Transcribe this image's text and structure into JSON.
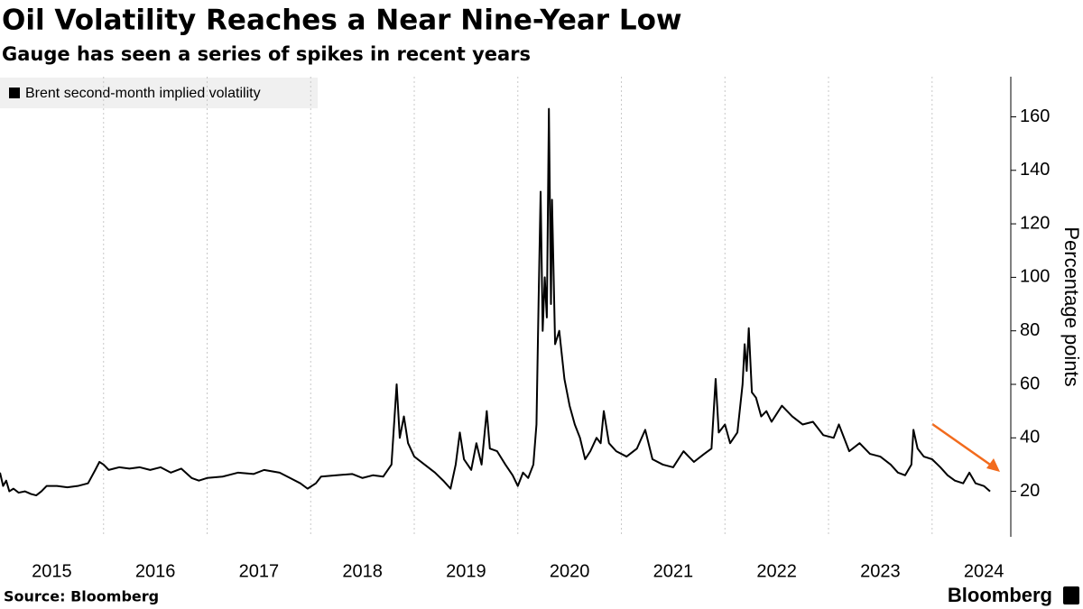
{
  "chart_data": {
    "type": "line",
    "title": "Oil Volatility Reaches a Near Nine-Year Low",
    "subtitle": "Gauge has seen a series of spikes in recent years",
    "y_label": "Percentage points",
    "source": "Source: Bloomberg",
    "brand": "Bloomberg",
    "x": [
      2015.0,
      2015.03,
      2015.06,
      2015.09,
      2015.13,
      2015.18,
      2015.24,
      2015.3,
      2015.35,
      2015.4,
      2015.45,
      2015.55,
      2015.65,
      2015.75,
      2015.85,
      2015.92,
      2015.96,
      2016.0,
      2016.05,
      2016.15,
      2016.25,
      2016.35,
      2016.45,
      2016.55,
      2016.65,
      2016.75,
      2016.85,
      2016.92,
      2017.0,
      2017.15,
      2017.3,
      2017.45,
      2017.55,
      2017.7,
      2017.8,
      2017.9,
      2017.97,
      2018.05,
      2018.1,
      2018.25,
      2018.4,
      2018.5,
      2018.6,
      2018.7,
      2018.78,
      2018.83,
      2018.86,
      2018.9,
      2018.94,
      2019.0,
      2019.1,
      2019.2,
      2019.28,
      2019.35,
      2019.4,
      2019.44,
      2019.48,
      2019.55,
      2019.6,
      2019.65,
      2019.7,
      2019.73,
      2019.8,
      2019.88,
      2019.95,
      2020.0,
      2020.05,
      2020.1,
      2020.15,
      2020.18,
      2020.2,
      2020.22,
      2020.24,
      2020.26,
      2020.28,
      2020.3,
      2020.32,
      2020.33,
      2020.36,
      2020.4,
      2020.45,
      2020.5,
      2020.55,
      2020.6,
      2020.65,
      2020.7,
      2020.76,
      2020.8,
      2020.83,
      2020.88,
      2020.95,
      2021.05,
      2021.15,
      2021.23,
      2021.3,
      2021.4,
      2021.5,
      2021.6,
      2021.7,
      2021.8,
      2021.87,
      2021.91,
      2021.94,
      2022.0,
      2022.05,
      2022.12,
      2022.17,
      2022.19,
      2022.21,
      2022.23,
      2022.26,
      2022.3,
      2022.35,
      2022.4,
      2022.45,
      2022.55,
      2022.65,
      2022.75,
      2022.85,
      2022.95,
      2023.05,
      2023.1,
      2023.2,
      2023.3,
      2023.4,
      2023.5,
      2023.6,
      2023.67,
      2023.74,
      2023.8,
      2023.82,
      2023.86,
      2023.92,
      2024.0,
      2024.08,
      2024.15,
      2024.22,
      2024.3,
      2024.36,
      2024.42,
      2024.5,
      2024.56
    ],
    "series": [
      {
        "name": "Brent second-month implied volatility",
        "color": "#000000",
        "values": [
          27,
          22,
          24,
          20,
          21,
          19.5,
          20,
          19,
          18.5,
          20,
          22,
          22,
          21.5,
          22,
          23,
          28,
          31,
          30,
          28,
          29,
          28.5,
          29,
          28,
          29,
          27,
          28.5,
          25,
          24,
          25,
          25.5,
          27,
          26.5,
          28,
          27,
          25,
          23,
          21,
          23,
          25.5,
          26,
          26.5,
          25,
          26,
          25.5,
          30,
          60,
          40,
          48,
          38,
          33,
          30,
          27,
          24,
          21,
          30,
          42,
          32,
          28,
          38,
          30,
          50,
          36,
          35,
          30,
          26,
          22,
          27,
          25,
          30,
          45,
          90,
          132,
          80,
          100,
          85,
          163,
          90,
          129,
          75,
          80,
          62,
          52,
          45,
          40,
          32,
          35,
          40,
          38,
          50,
          38,
          35,
          33,
          36,
          43,
          32,
          30,
          29,
          35,
          31,
          34,
          36,
          62,
          42,
          45,
          38,
          42,
          60,
          75,
          65,
          81,
          57,
          55,
          48,
          50,
          46,
          52,
          48,
          45,
          46,
          41,
          40,
          45,
          35,
          38,
          34,
          33,
          30,
          27,
          26,
          30,
          43,
          36,
          33,
          32,
          29,
          26,
          24,
          23,
          27,
          23,
          22,
          20
        ]
      }
    ],
    "xlim": [
      2015,
      2024.76
    ],
    "xticks": [
      {
        "value": 2015.5,
        "label": "2015"
      },
      {
        "value": 2016.5,
        "label": "2016"
      },
      {
        "value": 2017.5,
        "label": "2017"
      },
      {
        "value": 2018.5,
        "label": "2018"
      },
      {
        "value": 2019.5,
        "label": "2019"
      },
      {
        "value": 2020.5,
        "label": "2020"
      },
      {
        "value": 2021.5,
        "label": "2021"
      },
      {
        "value": 2022.5,
        "label": "2022"
      },
      {
        "value": 2023.5,
        "label": "2023"
      },
      {
        "value": 2024.5,
        "label": "2024"
      }
    ],
    "xgrid": [
      2016,
      2017,
      2018,
      2019,
      2020,
      2021,
      2022,
      2023,
      2024
    ],
    "ylim": [
      3,
      175
    ],
    "yticks": [
      20,
      40,
      60,
      80,
      100,
      120,
      140,
      160
    ]
  }
}
